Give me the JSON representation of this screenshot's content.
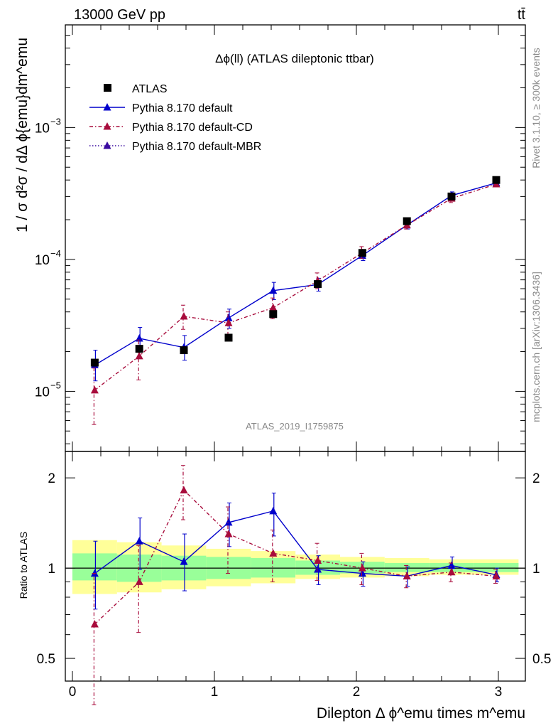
{
  "header": {
    "energy_label": "13000 GeV pp",
    "process_label": "tt̄"
  },
  "side_labels": {
    "rivet": "Rivet 3.1.10, ≥ 300k events",
    "mcplots": "mcplots.cern.ch [arXiv:1306.3436]"
  },
  "chart_data": [
    {
      "type": "line",
      "panel": "main",
      "title": "Δϕ(ll) (ATLAS dileptonic ttbar)",
      "watermark": "ATLAS_2019_I1759875",
      "ylabel": "1 / σ  d²σ / dΔ ϕ{emu}dm^emu",
      "yscale": "log",
      "ylim": [
        3.5e-06,
        0.006
      ],
      "xlim": [
        -0.05,
        3.19
      ],
      "y_tick_labels": [
        {
          "value": 0.001,
          "base": "10",
          "exp": "−3"
        },
        {
          "value": 0.0001,
          "base": "10",
          "exp": "−4"
        },
        {
          "value": 1e-05,
          "base": "10",
          "exp": "−5"
        }
      ],
      "legend_position": "top-left",
      "series": [
        {
          "name": "ATLAS",
          "style": "data",
          "color": "#000000",
          "x": [
            0.157,
            0.471,
            0.785,
            1.1,
            1.414,
            1.728,
            2.042,
            2.356,
            2.67,
            2.985
          ],
          "y": [
            1.65e-05,
            2.1e-05,
            2.05e-05,
            2.55e-05,
            3.85e-05,
            6.5e-05,
            0.000112,
            0.000195,
            0.0003,
            0.0004
          ]
        },
        {
          "name": "Pythia 8.170 default",
          "style": "solid",
          "color": "#0000cc",
          "x": [
            0.157,
            0.471,
            0.785,
            1.1,
            1.414,
            1.728,
            2.042,
            2.356,
            2.67,
            2.985
          ],
          "y": [
            1.58e-05,
            2.52e-05,
            2.15e-05,
            3.6e-05,
            5.8e-05,
            6.45e-05,
            0.000107,
            0.000182,
            0.000305,
            0.00038
          ],
          "err_lo": [
            1.2e-05,
            2.05e-05,
            1.72e-05,
            3e-05,
            4.95e-05,
            5.75e-05,
            9.8e-05,
            0.00017,
            0.000285,
            0.000362
          ],
          "err_hi": [
            2.05e-05,
            3.05e-05,
            2.65e-05,
            4.2e-05,
            6.7e-05,
            7.2e-05,
            0.000116,
            0.000194,
            0.000325,
            0.000398
          ]
        },
        {
          "name": "Pythia 8.170 default-CD",
          "style": "dashdot",
          "color": "#a80c3c",
          "x": [
            0.157,
            0.471,
            0.785,
            1.1,
            1.414,
            1.728,
            2.042,
            2.356,
            2.67,
            2.985
          ],
          "y": [
            1.02e-05,
            1.85e-05,
            3.7e-05,
            3.3e-05,
            4.3e-05,
            6.9e-05,
            0.000112,
            0.000182,
            0.00029,
            0.000372
          ],
          "err_lo": [
            5.6e-06,
            1.22e-05,
            2.95e-05,
            2.65e-05,
            3.55e-05,
            6e-05,
            0.000102,
            0.00017,
            0.00027,
            0.000355
          ],
          "err_hi": [
            1.5e-05,
            2.45e-05,
            4.5e-05,
            4e-05,
            5.1e-05,
            7.9e-05,
            0.000125,
            0.000195,
            0.00031,
            0.00039
          ]
        },
        {
          "name": "Pythia 8.170 default-MBR",
          "style": "dotted",
          "color": "#3a0aa0",
          "x": [],
          "y": []
        }
      ]
    },
    {
      "type": "line",
      "panel": "ratio",
      "xlabel": "Dilepton Δ ϕ^emu times m^emu",
      "ylabel": "Ratio to ATLAS",
      "yscale": "log",
      "ylim": [
        0.42,
        2.45
      ],
      "xlim": [
        -0.05,
        3.19
      ],
      "x_tick_labels": [
        "0",
        "1",
        "2",
        "3"
      ],
      "y_tick_labels": [
        "2",
        "1",
        "0.5"
      ],
      "band_edges": [
        0.0,
        0.314,
        0.628,
        0.942,
        1.257,
        1.571,
        1.885,
        2.199,
        2.513,
        2.827,
        3.142
      ],
      "band_inner": [
        [
          0.91,
          1.12
        ],
        [
          0.9,
          1.11
        ],
        [
          0.91,
          1.1
        ],
        [
          0.92,
          1.09
        ],
        [
          0.93,
          1.08
        ],
        [
          0.95,
          1.06
        ],
        [
          0.96,
          1.05
        ],
        [
          0.97,
          1.04
        ],
        [
          0.97,
          1.04
        ],
        [
          0.97,
          1.04
        ]
      ],
      "band_outer": [
        [
          0.82,
          1.24
        ],
        [
          0.83,
          1.22
        ],
        [
          0.85,
          1.19
        ],
        [
          0.87,
          1.16
        ],
        [
          0.89,
          1.14
        ],
        [
          0.92,
          1.11
        ],
        [
          0.93,
          1.09
        ],
        [
          0.94,
          1.08
        ],
        [
          0.95,
          1.07
        ],
        [
          0.95,
          1.07
        ]
      ],
      "series": [
        {
          "name": "Pythia 8.170 default",
          "style": "solid",
          "color": "#0000cc",
          "x": [
            0.157,
            0.471,
            0.785,
            1.1,
            1.414,
            1.728,
            2.042,
            2.356,
            2.67,
            2.985
          ],
          "y": [
            0.96,
            1.23,
            1.05,
            1.42,
            1.55,
            0.99,
            0.96,
            0.94,
            1.02,
            0.95
          ],
          "err_lo": [
            0.73,
            0.99,
            0.84,
            1.18,
            1.28,
            0.88,
            0.87,
            0.87,
            0.95,
            0.9
          ],
          "err_hi": [
            1.23,
            1.47,
            1.3,
            1.65,
            1.78,
            1.1,
            1.05,
            1.01,
            1.09,
            1.0
          ]
        },
        {
          "name": "Pythia 8.170 default-CD",
          "style": "dashdot",
          "color": "#a80c3c",
          "x": [
            0.157,
            0.471,
            0.785,
            1.1,
            1.414,
            1.728,
            2.042,
            2.356,
            2.67,
            2.985
          ],
          "y": [
            0.65,
            0.9,
            1.82,
            1.3,
            1.12,
            1.06,
            1.0,
            0.94,
            0.97,
            0.94
          ],
          "err_lo": [
            0.35,
            0.61,
            1.45,
            0.96,
            0.9,
            0.91,
            0.88,
            0.86,
            0.9,
            0.89
          ],
          "err_hi": [
            0.96,
            1.19,
            2.2,
            1.6,
            1.34,
            1.21,
            1.12,
            1.02,
            1.04,
            0.99
          ]
        }
      ]
    }
  ]
}
